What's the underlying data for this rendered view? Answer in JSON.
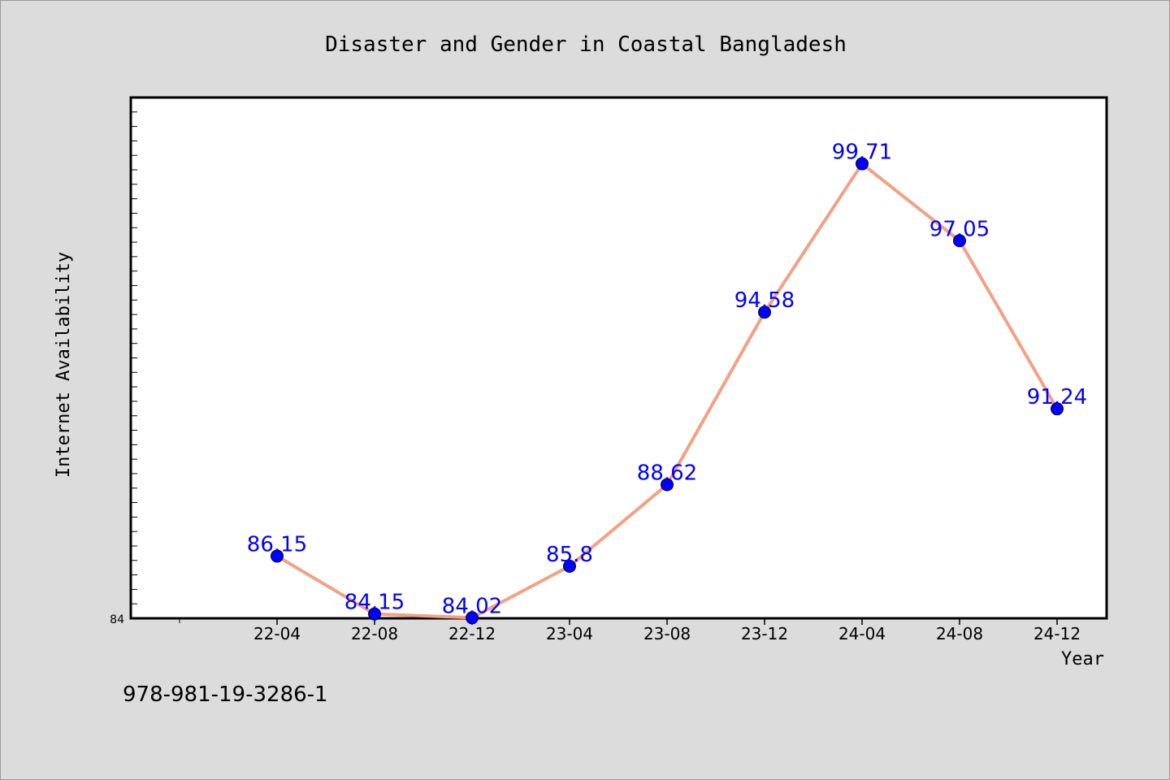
{
  "chart_data": {
    "type": "line",
    "title": "Disaster and Gender in Coastal Bangladesh",
    "xlabel": "Year",
    "ylabel": "Internet Availability",
    "categories": [
      "22-04",
      "22-08",
      "22-12",
      "23-04",
      "23-08",
      "23-12",
      "24-04",
      "24-08",
      "24-12"
    ],
    "series": [
      {
        "values": [
          86.15,
          84.15,
          84.02,
          85.8,
          88.62,
          94.58,
          99.71,
          97.05,
          91.24
        ],
        "labels": [
          "86.15",
          "84.15",
          "84.02",
          "85.8",
          "88.62",
          "94.58",
          "99.71",
          "97.05",
          "91.24"
        ]
      }
    ],
    "ylim": [
      84,
      102
    ],
    "y_tick_labels": [
      "84"
    ],
    "grid": false,
    "line_color": "#f4a083",
    "marker_color": "#0000ff",
    "label_color": "#0000ff",
    "isbn": "978-981-19-3286-1"
  }
}
